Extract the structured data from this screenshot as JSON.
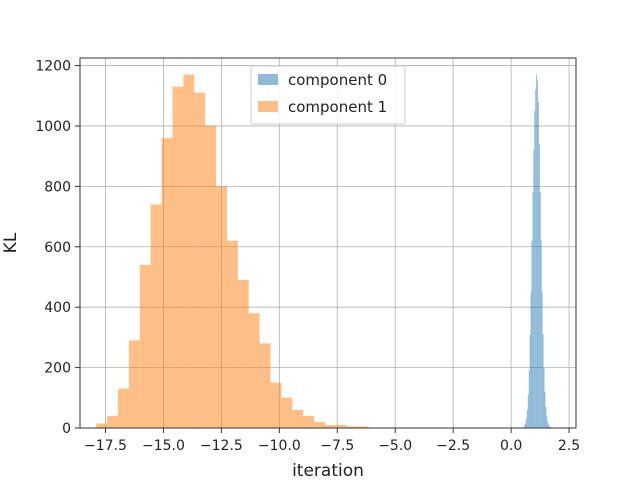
{
  "chart_data": {
    "type": "histogram",
    "title": "",
    "xlabel": "iteration",
    "ylabel": "KL",
    "xlim": [
      -18.6,
      2.8
    ],
    "ylim": [
      0,
      1225
    ],
    "x_ticks": [
      -17.5,
      -15.0,
      -12.5,
      -10.0,
      -7.5,
      -5.0,
      -2.5,
      0.0,
      2.5
    ],
    "x_tick_labels": [
      "−17.5",
      "−15.0",
      "−12.5",
      "−10.0",
      "−7.5",
      "−5.0",
      "−2.5",
      "0.0",
      "2.5"
    ],
    "y_ticks": [
      0,
      200,
      400,
      600,
      800,
      1000,
      1200
    ],
    "y_tick_labels": [
      "0",
      "200",
      "400",
      "600",
      "800",
      "1000",
      "1200"
    ],
    "grid": true,
    "legend_position": "top-center",
    "alpha": 0.5,
    "series": [
      {
        "name": "component 0",
        "color": "#1f77b4",
        "bin_edges": [
          0.52,
          0.56,
          0.6,
          0.64,
          0.68,
          0.72,
          0.76,
          0.8,
          0.84,
          0.88,
          0.92,
          0.96,
          1.0,
          1.04,
          1.08,
          1.12,
          1.16,
          1.2,
          1.24,
          1.28,
          1.32,
          1.36,
          1.4,
          1.44,
          1.48,
          1.52,
          1.56,
          1.6,
          1.64,
          1.68,
          1.72,
          1.76,
          1.8,
          1.84
        ],
        "counts": [
          3,
          8,
          15,
          30,
          60,
          110,
          190,
          310,
          450,
          620,
          780,
          920,
          1050,
          1120,
          1170,
          1150,
          1080,
          940,
          780,
          620,
          450,
          310,
          200,
          120,
          70,
          40,
          20,
          12,
          6,
          3,
          2,
          1,
          1
        ]
      },
      {
        "name": "component 1",
        "color": "#ff7f0e",
        "bin_edges": [
          -17.9,
          -17.43,
          -16.96,
          -16.49,
          -16.02,
          -15.55,
          -15.08,
          -14.61,
          -14.14,
          -13.67,
          -13.2,
          -12.73,
          -12.26,
          -11.79,
          -11.32,
          -10.85,
          -10.38,
          -9.91,
          -9.44,
          -8.97,
          -8.5,
          -8.03,
          -7.56,
          -7.09,
          -6.62,
          -6.15,
          -5.68
        ],
        "counts": [
          15,
          40,
          130,
          290,
          540,
          740,
          960,
          1130,
          1170,
          1110,
          1000,
          800,
          620,
          490,
          380,
          280,
          150,
          100,
          60,
          40,
          20,
          10,
          10,
          5,
          5,
          0
        ]
      }
    ]
  }
}
